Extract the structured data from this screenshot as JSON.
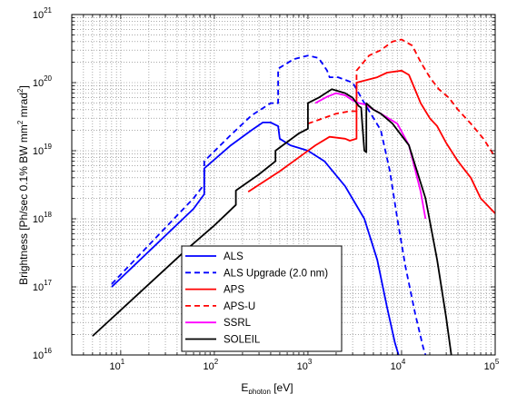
{
  "chart_data": {
    "type": "line",
    "title": "",
    "xlabel": {
      "main": "E",
      "sub": "photon",
      "unit": " [eV]"
    },
    "ylabel": "Brightness [Ph/sec 0.1% BW mm^2 mrad^2]",
    "ylabel_parts": [
      "Brightness [Ph/sec 0.1% BW mm",
      "2",
      " mrad",
      "2",
      "]"
    ],
    "x_scale": "log",
    "y_scale": "log",
    "xlim": [
      3,
      100000
    ],
    "ylim": [
      1e+16,
      1e+21
    ],
    "x_ticks": [
      {
        "base": "10",
        "exp": "1",
        "value": 10
      },
      {
        "base": "10",
        "exp": "2",
        "value": 100
      },
      {
        "base": "10",
        "exp": "3",
        "value": 1000
      },
      {
        "base": "10",
        "exp": "4",
        "value": 10000
      },
      {
        "base": "10",
        "exp": "5",
        "value": 100000
      }
    ],
    "y_ticks": [
      {
        "base": "10",
        "exp": "16",
        "value": 1e+16
      },
      {
        "base": "10",
        "exp": "17",
        "value": 1e+17
      },
      {
        "base": "10",
        "exp": "18",
        "value": 1e+18
      },
      {
        "base": "10",
        "exp": "19",
        "value": 1e+19
      },
      {
        "base": "10",
        "exp": "20",
        "value": 1e+20
      },
      {
        "base": "10",
        "exp": "21",
        "value": 1e+21
      }
    ],
    "grid": true,
    "legend_position": "bottom-center",
    "series": [
      {
        "name": "ALS",
        "color": "#0000ff",
        "dash": "solid",
        "points": [
          [
            8,
            1e+17
          ],
          [
            60,
            1.4e+18
          ],
          [
            78,
            2.3e+18
          ],
          [
            78,
            5.5e+18
          ],
          [
            150,
            1.2e+19
          ],
          [
            250,
            2e+19
          ],
          [
            330,
            2.6e+19
          ],
          [
            400,
            2.6e+19
          ],
          [
            480,
            2.3e+19
          ],
          [
            500,
            1.5e+19
          ],
          [
            650,
            1.2e+19
          ],
          [
            1000,
            1e+19
          ],
          [
            1500,
            7e+18
          ],
          [
            2500,
            3e+18
          ],
          [
            4000,
            1e+18
          ],
          [
            5500,
            2.5e+17
          ],
          [
            7000,
            5e+16
          ],
          [
            8500,
            1.5e+16
          ],
          [
            9300,
            1e+16
          ]
        ]
      },
      {
        "name": "ALS Upgrade (2.0 nm)",
        "color": "#0000ff",
        "dash": "dashed",
        "points": [
          [
            8,
            1.1e+17
          ],
          [
            60,
            2e+18
          ],
          [
            78,
            3.2e+18
          ],
          [
            78,
            7e+18
          ],
          [
            150,
            1.7e+19
          ],
          [
            250,
            3.3e+19
          ],
          [
            400,
            5e+19
          ],
          [
            480,
            5e+19
          ],
          [
            480,
            1.6e+20
          ],
          [
            700,
            2.2e+20
          ],
          [
            1000,
            2.5e+20
          ],
          [
            1300,
            2.3e+20
          ],
          [
            1600,
            1.5e+20
          ],
          [
            1700,
            1.2e+20
          ],
          [
            2100,
            1.2e+20
          ],
          [
            3000,
            1e+20
          ],
          [
            3300,
            8e+19
          ],
          [
            4000,
            5e+19
          ],
          [
            6000,
            2e+19
          ],
          [
            7500,
            5e+18
          ],
          [
            9000,
            1e+18
          ],
          [
            11000,
            2e+17
          ],
          [
            14000,
            4e+16
          ],
          [
            17000,
            1.3e+16
          ],
          [
            18000,
            1e+16
          ]
        ]
      },
      {
        "name": "APS",
        "color": "#ff0000",
        "dash": "solid",
        "points": [
          [
            230,
            2.5e+18
          ],
          [
            500,
            5e+18
          ],
          [
            800,
            8e+18
          ],
          [
            1200,
            1.2e+19
          ],
          [
            1700,
            1.6e+19
          ],
          [
            2500,
            1.5e+19
          ],
          [
            2800,
            1.4e+19
          ],
          [
            3300,
            1.5e+19
          ],
          [
            3300,
            1e+20
          ],
          [
            5500,
            1.2e+20
          ],
          [
            7000,
            1.4e+20
          ],
          [
            10000,
            1.5e+20
          ],
          [
            12000,
            1.3e+20
          ],
          [
            16000,
            5e+19
          ],
          [
            20000,
            3e+19
          ],
          [
            24000,
            2.3e+19
          ],
          [
            30000,
            1.3e+19
          ],
          [
            40000,
            7e+18
          ],
          [
            55000,
            4e+18
          ],
          [
            70000,
            2e+18
          ],
          [
            100000,
            1.2e+18
          ]
        ]
      },
      {
        "name": "APS-U",
        "color": "#ff0000",
        "dash": "dashed",
        "points": [
          [
            1000,
            2.5e+19
          ],
          [
            2000,
            3.5e+19
          ],
          [
            2800,
            3.8e+19
          ],
          [
            3300,
            3.8e+19
          ],
          [
            3300,
            1.5e+20
          ],
          [
            4500,
            2.5e+20
          ],
          [
            6000,
            3e+20
          ],
          [
            8000,
            4e+20
          ],
          [
            10000,
            4.3e+20
          ],
          [
            13000,
            3.5e+20
          ],
          [
            16000,
            2e+20
          ],
          [
            20000,
            1.2e+20
          ],
          [
            25000,
            8e+19
          ],
          [
            32000,
            6e+19
          ],
          [
            40000,
            4e+19
          ],
          [
            55000,
            2.5e+19
          ],
          [
            75000,
            1.5e+19
          ],
          [
            100000,
            8e+18
          ]
        ]
      },
      {
        "name": "SSRL",
        "color": "#ff00ff",
        "dash": "solid",
        "points": [
          [
            1200,
            5e+19
          ],
          [
            1600,
            6.2e+19
          ],
          [
            2000,
            7e+19
          ],
          [
            2500,
            6.5e+19
          ],
          [
            3000,
            5.5e+19
          ],
          [
            3500,
            5e+19
          ],
          [
            4000,
            4.8e+19
          ],
          [
            6000,
            3.5e+19
          ],
          [
            9000,
            2.5e+19
          ],
          [
            12000,
            1.2e+19
          ],
          [
            16000,
            2.5e+18
          ],
          [
            18000,
            1e+18
          ]
        ]
      },
      {
        "name": "SOLEIL",
        "color": "#000000",
        "dash": "solid",
        "points": [
          [
            5,
            1.9e+16
          ],
          [
            50,
            3.5e+17
          ],
          [
            100,
            8e+17
          ],
          [
            170,
            1.6e+18
          ],
          [
            170,
            2.6e+18
          ],
          [
            300,
            4.5e+18
          ],
          [
            450,
            7e+18
          ],
          [
            450,
            1e+19
          ],
          [
            800,
            1.8e+19
          ],
          [
            1000,
            2.1e+19
          ],
          [
            1000,
            5e+19
          ],
          [
            1300,
            6e+19
          ],
          [
            1800,
            8e+19
          ],
          [
            2500,
            7e+19
          ],
          [
            3000,
            6e+19
          ],
          [
            3500,
            4.5e+19
          ],
          [
            3700,
            4.3e+19
          ],
          [
            3800,
            2.5e+19
          ],
          [
            4000,
            1e+19
          ],
          [
            4200,
            9.5e+18
          ],
          [
            4200,
            5e+19
          ],
          [
            5000,
            4e+19
          ],
          [
            6000,
            3.5e+19
          ],
          [
            8000,
            2.5e+19
          ],
          [
            12000,
            1.2e+19
          ],
          [
            18000,
            2e+18
          ],
          [
            24000,
            2.5e+17
          ],
          [
            30000,
            3.5e+16
          ],
          [
            34000,
            1e+16
          ]
        ]
      }
    ]
  }
}
